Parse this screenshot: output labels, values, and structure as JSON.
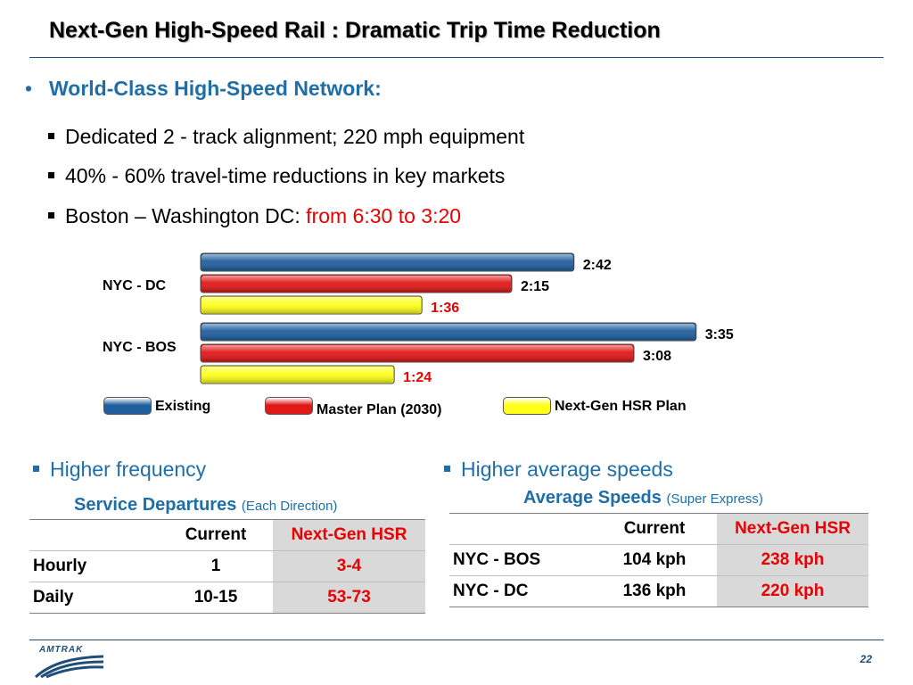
{
  "header": {
    "title": "Next-Gen High-Speed Rail : Dramatic Trip Time Reduction"
  },
  "section": {
    "heading": "World-Class High-Speed Network:",
    "bullets": [
      {
        "text": "Dedicated 2 - track alignment;  220 mph equipment"
      },
      {
        "text": "40% - 60% travel-time reductions in key markets"
      },
      {
        "text": "Boston – Washington DC: ",
        "highlight": "from 6:30 to 3:20"
      }
    ]
  },
  "chart_data": {
    "type": "bar",
    "orientation": "horizontal",
    "categories": [
      "NYC - DC",
      "NYC - BOS"
    ],
    "series": [
      {
        "name": "Existing",
        "color": "#1f5f9e",
        "values": [
          "2:42",
          "3:35"
        ],
        "value_minutes": [
          162,
          215
        ]
      },
      {
        "name": "Master Plan (2030)",
        "color": "#e01818",
        "values": [
          "2:15",
          "3:08"
        ],
        "value_minutes": [
          135,
          188
        ]
      },
      {
        "name": "Next-Gen HSR Plan",
        "color": "#ffff1a",
        "values": [
          "1:36",
          "1:24"
        ],
        "value_minutes": [
          96,
          84
        ]
      }
    ],
    "label_colors": {
      "Existing": "#000000",
      "Master Plan (2030)": "#000000",
      "Next-Gen HSR Plan": "#e60000"
    },
    "legend_position": "bottom",
    "grid": false
  },
  "frequency": {
    "bullet": "Higher frequency",
    "caption": "Service Departures",
    "caption_note": "(Each Direction)",
    "columns": [
      "",
      "Current",
      "Next-Gen HSR"
    ],
    "rows": [
      [
        "Hourly",
        "1",
        "3-4"
      ],
      [
        "Daily",
        "10-15",
        "53-73"
      ]
    ]
  },
  "speeds": {
    "bullet": "Higher average speeds",
    "caption": "Average Speeds",
    "caption_note": "(Super Express)",
    "columns": [
      "",
      "Current",
      "Next-Gen HSR"
    ],
    "rows": [
      [
        "NYC - BOS",
        "104 kph",
        "238 kph"
      ],
      [
        "NYC - DC",
        "136 kph",
        "220 kph"
      ]
    ]
  },
  "footer": {
    "logo_text": "AMTRAK",
    "page_number": "22"
  }
}
